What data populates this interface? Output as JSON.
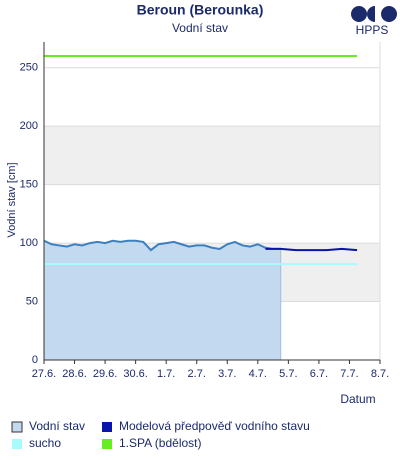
{
  "chart_data": {
    "type": "line",
    "title": "Beroun (Berounka)",
    "subtitle": "Vodní stav",
    "logo": "HPPS",
    "y_label": "Vodní stav [cm]",
    "x_label": "Datum",
    "xlim": [
      0,
      11
    ],
    "ylim": [
      0,
      272
    ],
    "xticks": [
      {
        "value": 0,
        "label": "27.6."
      },
      {
        "value": 1,
        "label": "28.6."
      },
      {
        "value": 2,
        "label": "29.6."
      },
      {
        "value": 3,
        "label": "30.6."
      },
      {
        "value": 4,
        "label": "1.7."
      },
      {
        "value": 5,
        "label": "2.7."
      },
      {
        "value": 6,
        "label": "3.7."
      },
      {
        "value": 7,
        "label": "4.7."
      },
      {
        "value": 8,
        "label": "5.7."
      },
      {
        "value": 9,
        "label": "6.7."
      },
      {
        "value": 10,
        "label": "7.7."
      },
      {
        "value": 11,
        "label": "8.7."
      }
    ],
    "yticks": [
      0,
      50,
      100,
      150,
      200,
      250
    ],
    "grid": true,
    "series": [
      {
        "name": "Vodní stav",
        "color": "#3d7fbf",
        "fill": "#c3d9ef",
        "x": [
          0,
          0.25,
          0.5,
          0.75,
          1,
          1.25,
          1.5,
          1.75,
          2,
          2.25,
          2.5,
          2.75,
          3,
          3.25,
          3.5,
          3.75,
          4,
          4.25,
          4.5,
          4.75,
          5,
          5.25,
          5.5,
          5.75,
          6,
          6.25,
          6.5,
          6.75,
          7,
          7.25,
          7.5,
          7.75
        ],
        "values": [
          102,
          99,
          98,
          97,
          99,
          98,
          100,
          101,
          100,
          102,
          101,
          102,
          102,
          101,
          94,
          99,
          100,
          101,
          99,
          97,
          98,
          98,
          96,
          95,
          99,
          101,
          98,
          97,
          99,
          96,
          95,
          95
        ]
      },
      {
        "name": "Modelová předpověď vodního stavu",
        "color": "#0a14a8",
        "x": [
          7.25,
          7.75,
          8.25,
          8.75,
          9.25,
          9.75,
          10.25
        ],
        "values": [
          95,
          95,
          94,
          94,
          94,
          95,
          94
        ]
      },
      {
        "name": "sucho",
        "color": "#a8fbfb",
        "x": [
          0,
          10.25
        ],
        "values": [
          82,
          82
        ]
      },
      {
        "name": "1.SPA (bdělost)",
        "color": "#66ee22",
        "x": [
          0,
          10.25
        ],
        "values": [
          260,
          260
        ]
      }
    ]
  }
}
